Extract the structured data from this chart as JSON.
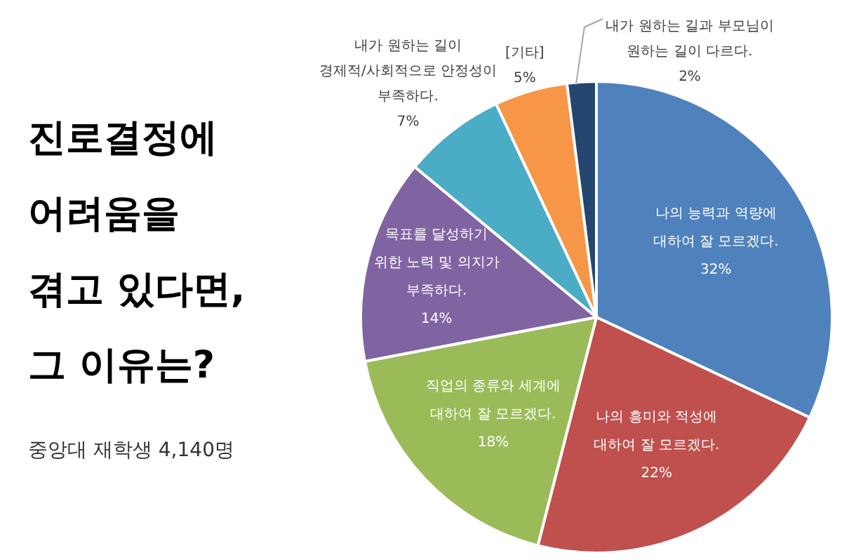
{
  "chart_data": {
    "type": "pie",
    "title": "진로결정에\n어려움을\n겪고 있다면,\n그 이유는?",
    "annotations": [
      "중앙대 재학생 4,140명"
    ],
    "categories": [
      "나의 능력과 역량에\n대하여 잘 모르겠다.",
      "나의 흥미와 적성에\n대하여 잘 모르겠다.",
      "직업의 종류와 세계에\n대하여 잘 모르겠다.",
      "목표를 달성하기\n위한 노력 및 의지가\n부족하다.",
      "내가 원하는 길이\n경제적/사회적으로 안정성이\n부족하다.",
      "[기타]",
      "내가 원하는 길과 부모님이\n원하는 길이 다르다."
    ],
    "values": [
      32,
      22,
      18,
      14,
      7,
      5,
      2
    ],
    "value_labels": [
      "32%",
      "22%",
      "18%",
      "14%",
      "7%",
      "5%",
      "2%"
    ],
    "colors": [
      "#4f81bd",
      "#c0504d",
      "#9bbb59",
      "#8064a2",
      "#4bacc6",
      "#f79646",
      "#24466f"
    ]
  }
}
